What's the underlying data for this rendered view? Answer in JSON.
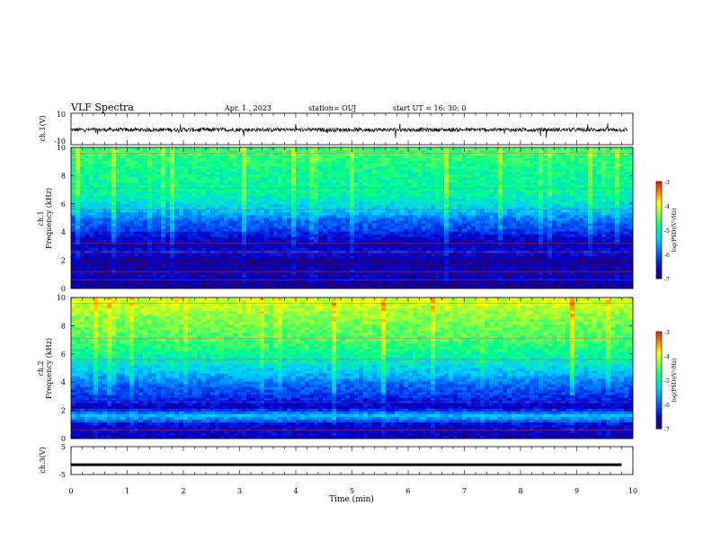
{
  "header": {
    "title": "VLF Spectra",
    "date": "Apr. 1 , 2023",
    "station": "station= OUJ",
    "start": "start  UT =   16: 30: 0"
  },
  "colors": {
    "colormap": [
      "#2a0066",
      "#0000d0",
      "#0066ff",
      "#00ccff",
      "#00ff88",
      "#88ff44",
      "#ffff00",
      "#ff8800",
      "#ff2200",
      "#ffffff"
    ],
    "waveform": "#000000"
  },
  "chart_data": [
    {
      "type": "line",
      "name": "ch1-waveform",
      "ylabel": "ch.1(V)",
      "ylim": [
        -10,
        10
      ],
      "yticks": [
        "10",
        "-10"
      ],
      "x_range_min": [
        0,
        10
      ],
      "level_v": -0.5,
      "noise_amplitude_v": 2.5
    },
    {
      "type": "heatmap",
      "name": "ch1-spectrogram",
      "ylabel": "ch.1 Frequency (kHz)",
      "ylabel_channel": "ch.1",
      "ylabel_freq": "Frequency (kHz)",
      "ylim_khz": [
        0,
        10
      ],
      "yticks": [
        "0",
        "2",
        "4",
        "6",
        "8",
        "10"
      ],
      "colorbar": {
        "label": "log(PSD)(V²/Hz)",
        "range": [
          -7,
          -3
        ],
        "ticks": [
          "-3",
          "-4",
          "-5",
          "-6",
          "-7"
        ]
      },
      "bands_khz": [
        {
          "freq": 0.3,
          "level": -6.8
        },
        {
          "freq": 1.0,
          "level": -6.6
        },
        {
          "freq": 1.4,
          "level": -6.7
        },
        {
          "freq": 2.0,
          "level": -6.8
        },
        {
          "freq": 2.6,
          "level": -6.4
        },
        {
          "freq": 3.1,
          "level": -6.7
        },
        {
          "freq": 3.6,
          "level": -6.5
        },
        {
          "freq": 4.2,
          "level": -6.1
        },
        {
          "freq": 4.8,
          "level": -5.9
        },
        {
          "freq": 5.6,
          "level": -5.3
        },
        {
          "freq": 6.8,
          "level": -4.9
        },
        {
          "freq": 8.5,
          "level": -4.8
        },
        {
          "freq": 9.6,
          "level": -4.6
        }
      ]
    },
    {
      "type": "heatmap",
      "name": "ch2-spectrogram",
      "ylabel": "ch.2 Frequency (kHz)",
      "ylabel_channel": "ch.2",
      "ylabel_freq": "Frequency (kHz)",
      "ylim_khz": [
        0,
        10
      ],
      "yticks": [
        "0",
        "2",
        "4",
        "6",
        "8",
        "10"
      ],
      "colorbar": {
        "label": "log(PSD)(V²/Hz)",
        "range": [
          -7,
          -3
        ],
        "ticks": [
          "-3",
          "-4",
          "-5",
          "-6",
          "-7"
        ]
      },
      "bands_khz": [
        {
          "freq": 0.3,
          "level": -6.6
        },
        {
          "freq": 1.0,
          "level": -6.5
        },
        {
          "freq": 1.6,
          "level": -5.3
        },
        {
          "freq": 2.2,
          "level": -6.6
        },
        {
          "freq": 3.0,
          "level": -6.2
        },
        {
          "freq": 3.8,
          "level": -5.9
        },
        {
          "freq": 4.6,
          "level": -5.4
        },
        {
          "freq": 5.6,
          "level": -5.0
        },
        {
          "freq": 6.8,
          "level": -4.6
        },
        {
          "freq": 8.5,
          "level": -4.3
        },
        {
          "freq": 9.6,
          "level": -4.0
        }
      ]
    },
    {
      "type": "line",
      "name": "ch3-waveform",
      "ylabel": "ch.3(V)",
      "ylim": [
        -5,
        5
      ],
      "yticks": [
        "5",
        "-5"
      ],
      "x_range_min": [
        0,
        9.8
      ],
      "level_v": -1.5
    }
  ],
  "xaxis": {
    "label": "Time (min)",
    "range": [
      0,
      10
    ],
    "ticks": [
      "0",
      "1",
      "2",
      "3",
      "4",
      "5",
      "6",
      "7",
      "8",
      "9",
      "10"
    ]
  }
}
